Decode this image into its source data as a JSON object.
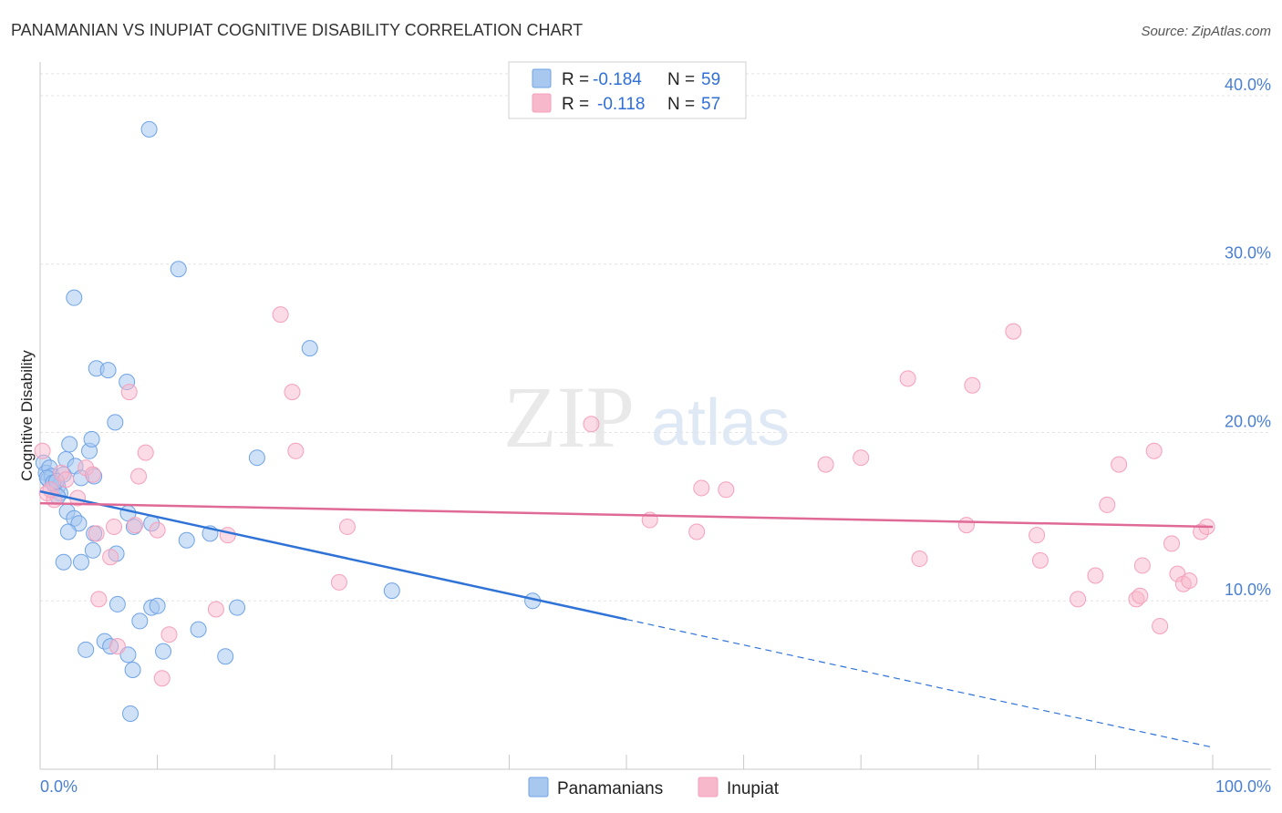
{
  "title": "PANAMANIAN VS INUPIAT COGNITIVE DISABILITY CORRELATION CHART",
  "source": "Source: ZipAtlas.com",
  "watermark": {
    "zip": "ZIP",
    "atlas": "atlas"
  },
  "legend": {
    "rows": [
      {
        "r_label": "R = ",
        "r_value": "-0.184",
        "n_label": "N = ",
        "n_value": "59",
        "color": "#a8c8f0"
      },
      {
        "r_label": "R = ",
        "r_value": "-0.118",
        "n_label": "N = ",
        "n_value": "57",
        "color": "#f8b8cc"
      }
    ]
  },
  "bottom_legend": [
    {
      "label": "Panamanians",
      "color": "#a8c8f0"
    },
    {
      "label": "Inupiat",
      "color": "#f8b8cc"
    }
  ],
  "chart_data": {
    "type": "scatter",
    "xlabel": "",
    "ylabel": "Cognitive Disability",
    "xlim": [
      0,
      100
    ],
    "ylim": [
      0,
      42
    ],
    "x_tick_labels": [
      "0.0%",
      "100.0%"
    ],
    "y_ticks": [
      10,
      20,
      30,
      40
    ],
    "y_tick_labels": [
      "10.0%",
      "20.0%",
      "30.0%",
      "40.0%"
    ],
    "grid": true,
    "legend_position": "top-center",
    "series": [
      {
        "name": "Panamanians",
        "color": "#6fa3e6",
        "trend": {
          "x0": 0,
          "y0": 16.5,
          "x1": 50,
          "y1": 8.9,
          "dash_to_x": 100,
          "dash_to_y": 1.3,
          "color": "#2f73d6"
        },
        "points": [
          [
            0.3,
            18.2
          ],
          [
            0.5,
            17.6
          ],
          [
            0.7,
            17.2
          ],
          [
            0.8,
            17.9
          ],
          [
            1.0,
            17.4
          ],
          [
            1.2,
            16.9
          ],
          [
            1.5,
            16.8
          ],
          [
            1.7,
            16.4
          ],
          [
            2.0,
            17.5
          ],
          [
            2.2,
            18.4
          ],
          [
            2.5,
            19.3
          ],
          [
            3.0,
            18.0
          ],
          [
            3.5,
            17.3
          ],
          [
            4.2,
            18.9
          ],
          [
            4.4,
            19.6
          ],
          [
            1.5,
            16.2
          ],
          [
            2.3,
            15.3
          ],
          [
            2.9,
            14.9
          ],
          [
            3.3,
            14.6
          ],
          [
            2.4,
            14.1
          ],
          [
            2.0,
            12.3
          ],
          [
            3.5,
            12.3
          ],
          [
            4.5,
            13.0
          ],
          [
            4.6,
            14.0
          ],
          [
            6.5,
            12.8
          ],
          [
            7.5,
            15.2
          ],
          [
            8.0,
            14.4
          ],
          [
            9.5,
            14.6
          ],
          [
            12.5,
            13.6
          ],
          [
            14.5,
            14.0
          ],
          [
            4.8,
            23.8
          ],
          [
            5.8,
            23.7
          ],
          [
            7.4,
            23.0
          ],
          [
            6.4,
            20.6
          ],
          [
            2.9,
            28.0
          ],
          [
            9.3,
            38.0
          ],
          [
            11.8,
            29.7
          ],
          [
            18.5,
            18.5
          ],
          [
            23.0,
            25.0
          ],
          [
            6.6,
            9.8
          ],
          [
            8.5,
            8.8
          ],
          [
            9.5,
            9.6
          ],
          [
            10.0,
            9.7
          ],
          [
            10.5,
            7.0
          ],
          [
            13.5,
            8.3
          ],
          [
            15.8,
            6.7
          ],
          [
            16.8,
            9.6
          ],
          [
            3.9,
            7.1
          ],
          [
            5.5,
            7.6
          ],
          [
            6.0,
            7.3
          ],
          [
            7.5,
            6.8
          ],
          [
            7.9,
            5.9
          ],
          [
            7.7,
            3.3
          ],
          [
            30.0,
            10.6
          ],
          [
            42.0,
            10.0
          ],
          [
            0.6,
            17.3
          ],
          [
            1.1,
            17.0
          ],
          [
            4.6,
            17.4
          ],
          [
            1.4,
            17.1
          ]
        ]
      },
      {
        "name": "Inupiat",
        "color": "#f5a0bb",
        "trend": {
          "x0": 0,
          "y0": 15.8,
          "x1": 100,
          "y1": 14.4,
          "color": "#e06a96"
        },
        "points": [
          [
            0.2,
            18.9
          ],
          [
            0.6,
            16.4
          ],
          [
            1.2,
            16.0
          ],
          [
            1.8,
            17.6
          ],
          [
            2.2,
            17.2
          ],
          [
            3.2,
            16.1
          ],
          [
            3.9,
            17.9
          ],
          [
            4.5,
            17.5
          ],
          [
            4.8,
            14.0
          ],
          [
            5.0,
            10.1
          ],
          [
            6.0,
            12.6
          ],
          [
            6.3,
            14.4
          ],
          [
            6.6,
            7.3
          ],
          [
            7.6,
            22.4
          ],
          [
            8.1,
            14.5
          ],
          [
            8.4,
            17.4
          ],
          [
            9.0,
            18.8
          ],
          [
            10.0,
            14.2
          ],
          [
            10.4,
            5.4
          ],
          [
            11.0,
            8.0
          ],
          [
            15.0,
            9.5
          ],
          [
            16.0,
            13.9
          ],
          [
            20.5,
            27.0
          ],
          [
            21.5,
            22.4
          ],
          [
            21.8,
            18.9
          ],
          [
            25.5,
            11.1
          ],
          [
            26.2,
            14.4
          ],
          [
            47.0,
            20.5
          ],
          [
            52.0,
            14.8
          ],
          [
            56.0,
            14.1
          ],
          [
            56.4,
            16.7
          ],
          [
            58.5,
            16.6
          ],
          [
            67.0,
            18.1
          ],
          [
            70.0,
            18.5
          ],
          [
            74.0,
            23.2
          ],
          [
            75.0,
            12.5
          ],
          [
            79.0,
            14.5
          ],
          [
            79.5,
            22.8
          ],
          [
            83.0,
            26.0
          ],
          [
            85.0,
            13.9
          ],
          [
            85.3,
            12.4
          ],
          [
            88.5,
            10.1
          ],
          [
            90.0,
            11.5
          ],
          [
            91.0,
            15.7
          ],
          [
            92.0,
            18.1
          ],
          [
            93.5,
            10.1
          ],
          [
            93.8,
            10.3
          ],
          [
            94.0,
            12.1
          ],
          [
            95.0,
            18.9
          ],
          [
            95.5,
            8.5
          ],
          [
            96.5,
            13.4
          ],
          [
            97.0,
            11.6
          ],
          [
            97.5,
            11.0
          ],
          [
            98.0,
            11.2
          ],
          [
            99.0,
            14.1
          ],
          [
            99.5,
            14.4
          ],
          [
            0.9,
            16.6
          ]
        ]
      }
    ]
  }
}
